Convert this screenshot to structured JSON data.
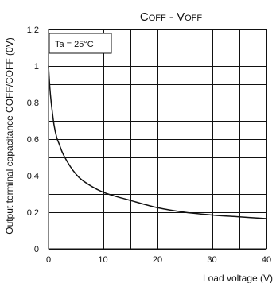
{
  "chart_data": {
    "type": "line",
    "title": {
      "parts": [
        {
          "text": "C",
          "small": false
        },
        {
          "text": "OFF",
          "small": true
        },
        {
          "text": " - V",
          "small": false
        },
        {
          "text": "OFF",
          "small": true
        }
      ]
    },
    "xlabel": "Load voltage (V)",
    "ylabel": "Output terminal capacitance COFF/COFF (0V)",
    "annotation": "Ta = 25°C",
    "xlim": [
      0,
      40
    ],
    "ylim": [
      0,
      1.2
    ],
    "x_ticks": [
      0,
      10,
      20,
      30,
      40
    ],
    "y_ticks": [
      0,
      0.2,
      0.4,
      0.6,
      0.8,
      1,
      1.2
    ],
    "x_tick_labels": [
      "0",
      "10",
      "20",
      "30",
      "40"
    ],
    "y_tick_labels": [
      "0",
      "0.2",
      "0.4",
      "0.6",
      "0.8",
      "1",
      "1.2"
    ],
    "grid": {
      "x_step": 5,
      "y_step": 0.1
    },
    "series": [
      {
        "x": [
          0,
          0.25,
          0.5,
          1,
          1.5,
          2,
          2.5,
          3,
          4,
          5,
          6,
          8,
          10,
          12,
          15,
          20,
          25,
          30,
          35,
          40
        ],
        "y": [
          1.0,
          0.88,
          0.8,
          0.68,
          0.61,
          0.57,
          0.53,
          0.5,
          0.45,
          0.41,
          0.38,
          0.34,
          0.31,
          0.29,
          0.265,
          0.225,
          0.2,
          0.185,
          0.175,
          0.165
        ]
      }
    ]
  }
}
